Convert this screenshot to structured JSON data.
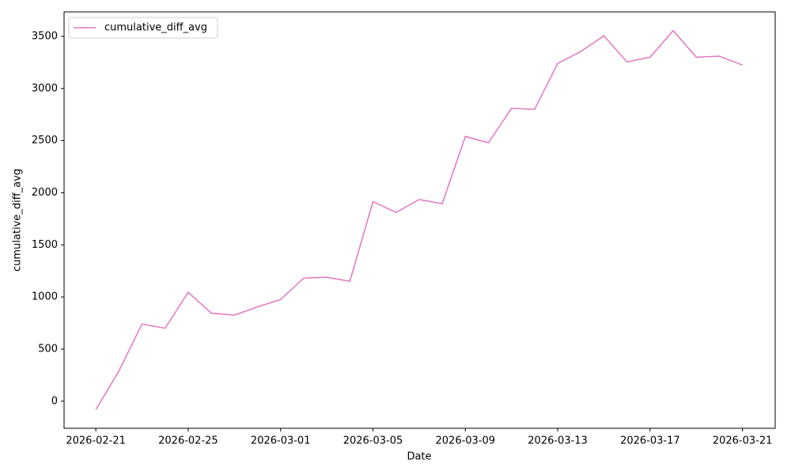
{
  "chart_data": {
    "type": "line",
    "xlabel": "Date",
    "ylabel": "cumulative_diff_avg",
    "x": [
      "2026-02-21",
      "2026-02-22",
      "2026-02-23",
      "2026-02-24",
      "2026-02-25",
      "2026-02-26",
      "2026-02-27",
      "2026-02-28",
      "2026-03-01",
      "2026-03-02",
      "2026-03-03",
      "2026-03-04",
      "2026-03-05",
      "2026-03-06",
      "2026-03-07",
      "2026-03-08",
      "2026-03-09",
      "2026-03-10",
      "2026-03-11",
      "2026-03-12",
      "2026-03-13",
      "2026-03-14",
      "2026-03-15",
      "2026-03-16",
      "2026-03-17",
      "2026-03-18",
      "2026-03-19",
      "2026-03-20",
      "2026-03-21"
    ],
    "series": [
      {
        "name": "cumulative_diff_avg",
        "color": "#e377c2",
        "values": [
          -80,
          290,
          740,
          700,
          1045,
          845,
          825,
          905,
          975,
          1180,
          1190,
          1150,
          1915,
          1810,
          1935,
          1895,
          2540,
          2480,
          2810,
          2800,
          3240,
          3355,
          3505,
          3255,
          3300,
          3555,
          3300,
          3310,
          3225
        ]
      }
    ],
    "xlim": [
      "2026-02-19T15:00Z",
      "2026-03-22T10:00Z"
    ],
    "xticks": [
      "2026-02-21",
      "2026-02-25",
      "2026-03-01",
      "2026-03-05",
      "2026-03-09",
      "2026-03-13",
      "2026-03-17",
      "2026-03-21"
    ],
    "ylim": [
      -260,
      3735
    ],
    "yticks": [
      0,
      500,
      1000,
      1500,
      2000,
      2500,
      3000,
      3500
    ],
    "grid": false,
    "legend": "upper left"
  }
}
